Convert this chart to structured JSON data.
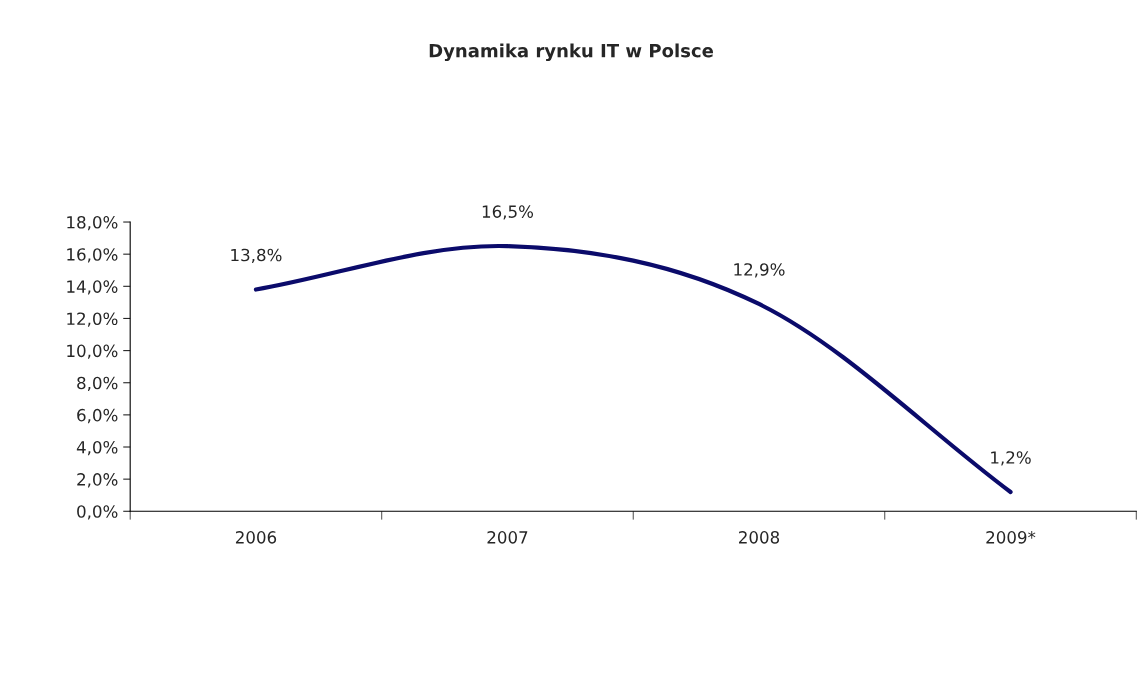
{
  "chart_data": {
    "type": "line",
    "title": "Dynamika rynku IT w Polsce",
    "categories": [
      "2006",
      "2007",
      "2008",
      "2009*"
    ],
    "series": [
      {
        "color": "#0b0b6b",
        "values": [
          13.8,
          16.5,
          12.9,
          1.2
        ],
        "value_labels": [
          "13,8%",
          "16,5%",
          "12,9%",
          "1,2%"
        ]
      }
    ],
    "ylim": [
      0,
      18
    ],
    "yticks": [
      {
        "value": 0,
        "label": "0,0%"
      },
      {
        "value": 2,
        "label": "2,0%"
      },
      {
        "value": 4,
        "label": "4,0%"
      },
      {
        "value": 6,
        "label": "6,0%"
      },
      {
        "value": 8,
        "label": "8,0%"
      },
      {
        "value": 10,
        "label": "10,0%"
      },
      {
        "value": 12,
        "label": "12,0%"
      },
      {
        "value": 14,
        "label": "14,0%"
      },
      {
        "value": 16,
        "label": "16,0%"
      },
      {
        "value": 18,
        "label": "18,0%"
      }
    ],
    "grid": false,
    "legend": false,
    "marker": "none",
    "line_style": "solid"
  }
}
